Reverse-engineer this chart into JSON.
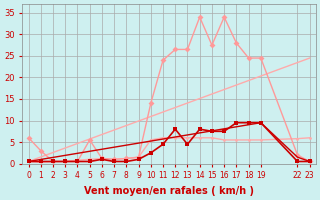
{
  "background_color": "#cef0f0",
  "grid_color": "#aaaaaa",
  "xlabel": "Vent moyen/en rafales ( km/h )",
  "xlabel_color": "#cc0000",
  "ylabel_ticks": [
    0,
    5,
    10,
    15,
    20,
    25,
    30,
    35
  ],
  "xlim": [
    -0.5,
    23.5
  ],
  "ylim": [
    0,
    37
  ],
  "xtick_positions": [
    0,
    1,
    2,
    3,
    4,
    5,
    6,
    7,
    8,
    9,
    10,
    11,
    12,
    13,
    14,
    15,
    16,
    17,
    18,
    19,
    22,
    23
  ],
  "xtick_labels": [
    "0",
    "1",
    "2",
    "3",
    "4",
    "5",
    "6",
    "7",
    "8",
    "9",
    "10",
    "11",
    "12",
    "13",
    "14",
    "15",
    "16",
    "17",
    "18",
    "19",
    "22",
    "23"
  ],
  "line1_x": [
    0,
    1,
    2,
    3,
    4,
    5,
    6,
    7,
    8,
    9,
    10,
    11,
    12,
    13,
    14,
    15,
    16,
    17,
    18,
    19,
    22,
    23
  ],
  "line1_y": [
    0.5,
    0.3,
    0.5,
    0.5,
    0.8,
    1.0,
    1.2,
    1.0,
    1.2,
    1.5,
    5.5,
    6.0,
    6.0,
    6.0,
    6.0,
    6.0,
    5.5,
    5.5,
    5.5,
    5.5,
    5.8,
    6.0
  ],
  "line1_color": "#ffaaaa",
  "line2_x": [
    0,
    1,
    2,
    3,
    4,
    5,
    6,
    7,
    8,
    9,
    10,
    11,
    12,
    13,
    14,
    15,
    16,
    17,
    18,
    19,
    22,
    23
  ],
  "line2_y": [
    6.0,
    3.0,
    0.5,
    0.5,
    0.5,
    5.5,
    1.2,
    1.0,
    1.2,
    1.5,
    14.0,
    24.0,
    26.5,
    26.5,
    34.0,
    27.5,
    34.0,
    28.0,
    24.5,
    24.5,
    2.0,
    0.5
  ],
  "line2_color": "#ff9999",
  "line3_x": [
    0,
    1,
    2,
    3,
    4,
    5,
    6,
    7,
    8,
    9,
    10,
    11,
    12,
    13,
    14,
    15,
    16,
    17,
    18,
    19,
    22,
    23
  ],
  "line3_y": [
    0.5,
    0.5,
    0.5,
    0.5,
    0.5,
    0.5,
    1.0,
    0.5,
    0.5,
    1.0,
    2.5,
    4.5,
    8.0,
    4.5,
    8.0,
    7.5,
    7.5,
    9.5,
    9.5,
    9.5,
    0.5,
    0.5
  ],
  "line3_color": "#cc0000",
  "line4_x": [
    0,
    19,
    22,
    23
  ],
  "line4_y": [
    0.5,
    9.5,
    1.5,
    0.5
  ],
  "line4_color": "#cc0000",
  "line5_x": [
    0,
    23
  ],
  "line5_y": [
    0.5,
    24.5
  ],
  "line5_color": "#ffaaaa",
  "marker_size": 3,
  "tick_color": "#cc0000"
}
